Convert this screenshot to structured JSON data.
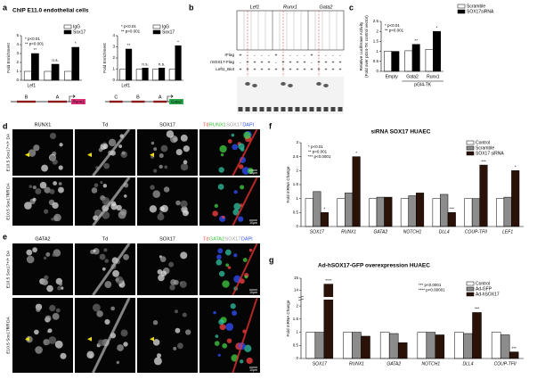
{
  "panel_labels": [
    "a",
    "b",
    "c",
    "d",
    "e",
    "f",
    "g"
  ],
  "chart_data": [
    {
      "type": "bar",
      "title": "ChIP E11.0 endothelial cells",
      "ylabel": [
        "Fold Enrichment"
      ],
      "categories": [
        "Lef1",
        null,
        null
      ],
      "series": [
        {
          "name": "IgG",
          "color": "#ffffff",
          "values": [
            1,
            1,
            1
          ]
        },
        {
          "name": "Sox17",
          "color": "#000000",
          "values": [
            3,
            1.8,
            3.7
          ],
          "significance": [
            "**",
            "n.s.",
            "*"
          ]
        }
      ],
      "ylim": [
        0,
        5
      ],
      "yticks": [
        0,
        1,
        2,
        3,
        4,
        5
      ],
      "annotations": [
        "* p<0.01",
        "** p<0.001"
      ]
    },
    {
      "type": "bar",
      "ylabel": [
        "Fold Enrichment"
      ],
      "categories": [
        "Lef1",
        null,
        null,
        null
      ],
      "series": [
        {
          "name": "IgG",
          "color": "#ffffff",
          "values": [
            1,
            1,
            1,
            1
          ]
        },
        {
          "name": "Sox17",
          "color": "#000000",
          "values": [
            2.8,
            1.1,
            1.1,
            3.1
          ],
          "significance": [
            "**",
            "n.s.",
            "n.s.",
            "*"
          ]
        }
      ],
      "ylim": [
        0,
        4
      ],
      "yticks": [
        0,
        1,
        2,
        3,
        4
      ],
      "annotations": [
        "* p<0.01",
        "** p<0.001"
      ]
    },
    {
      "type": "bar",
      "ylabel": [
        "Relative Luciferase Activity",
        "(Fold over pGI4-TK control vector)"
      ],
      "xlabel": "pGI4-TK",
      "categories": [
        "Empty",
        "Gata2",
        "Runx1"
      ],
      "series": [
        {
          "name": "Scramble",
          "color": "#ffffff",
          "values": [
            1,
            1.03,
            1.1
          ]
        },
        {
          "name": "SOX17siRNA",
          "color": "#000000",
          "values": [
            1,
            1.35,
            2.0
          ],
          "significance": [
            null,
            "**",
            "*"
          ]
        }
      ],
      "ylim": [
        0,
        2.5
      ],
      "yticks": [
        0,
        0.5,
        1,
        1.5,
        2,
        2.5
      ],
      "annotations": [
        "* p<0.01",
        "** p<0.001"
      ]
    },
    {
      "type": "bar",
      "title": "siRNA SOX17 HUAEC",
      "ylabel": [
        "Fold mRNA Change"
      ],
      "categories": [
        "SOX17",
        "RUNX1",
        "GATA2",
        "NOTCH1",
        "DLL4",
        "COUP-TFII",
        "LEF1"
      ],
      "series": [
        {
          "name": "Control",
          "color": "#ffffff",
          "values": [
            1,
            1,
            1,
            1,
            1,
            1,
            1
          ]
        },
        {
          "name": "Scramble",
          "color": "#8c8c8c",
          "values": [
            1.25,
            1.2,
            1.05,
            1.1,
            1.15,
            1.0,
            1.05
          ]
        },
        {
          "name": "SOX17 siRNA",
          "color": "#2a1208",
          "values": [
            0.5,
            2.5,
            1.05,
            1.2,
            0.5,
            2.2,
            2.0
          ],
          "significance": [
            "*",
            "*",
            null,
            null,
            "***",
            "***",
            "*"
          ]
        }
      ],
      "ylim": [
        0,
        3
      ],
      "yticks": [
        0,
        0.5,
        1,
        1.5,
        2,
        2.5,
        3
      ],
      "annotations": [
        "* p<0.01",
        "** p<0.001",
        "*** p<0.0001"
      ]
    },
    {
      "type": "bar",
      "title": "Ad-hSOX17-GFP overexpression HUAEC",
      "ylabel": [
        "Fold mRNA Change"
      ],
      "categories": [
        "SOX17",
        "RUNX1",
        "GATA2",
        "NOTCH1",
        "DLL4",
        "COUP-TFII"
      ],
      "series": [
        {
          "name": "Control",
          "color": "#ffffff",
          "values": [
            1,
            1,
            1,
            1,
            1,
            1
          ]
        },
        {
          "name": "Ad-GFP",
          "color": "#8c8c8c",
          "values": [
            1.0,
            1.0,
            0.95,
            1.0,
            0.95,
            0.9
          ]
        },
        {
          "name": "Ad-hSOX17",
          "color": "#2a1208",
          "values": [
            14.5,
            0.85,
            0.6,
            0.9,
            1.75,
            0.25
          ],
          "significance": [
            "****",
            null,
            null,
            null,
            "***",
            "***"
          ]
        }
      ],
      "ylim": [
        0,
        15
      ],
      "ybreak": [
        2.2,
        13.5
      ],
      "yticks": [
        0,
        0.5,
        1,
        1.5,
        2,
        14,
        15
      ],
      "annotations": [
        "*** p<0.0001",
        "**** p<0.00001"
      ]
    }
  ],
  "chip_diagrams": [
    {
      "regions": [
        "B",
        "A"
      ],
      "gene": "Runx1",
      "color": "#e0307a"
    },
    {
      "regions": [
        "C",
        "B",
        "A"
      ],
      "gene": "Gata2",
      "color": "#2aa84a"
    }
  ],
  "emsa": {
    "genes": [
      "Lef1",
      "Runx1",
      "Gata2"
    ],
    "rows": [
      {
        "label": "rFlag",
        "cells": [
          "+",
          "-",
          "-",
          "-",
          "-",
          "+",
          "-",
          "-",
          "-",
          "-",
          "+",
          "-",
          "-",
          "-",
          "-"
        ]
      },
      {
        "label": "rSOX17-Flag",
        "cells": [
          "-",
          "+",
          "+",
          "+",
          "+",
          "-",
          "+",
          "+",
          "+",
          "+",
          "-",
          "+",
          "+",
          "+",
          "+"
        ]
      },
      {
        "label": "Left1_Biot",
        "cells": [
          "+",
          "+",
          "+",
          "+",
          "+",
          "+",
          "+",
          "+",
          "+",
          "+",
          "+",
          "+",
          "+",
          "+",
          "+"
        ]
      }
    ]
  },
  "microscopy": [
    {
      "columns": [
        "RUNX1",
        "Td",
        "SOX17"
      ],
      "merge": [
        {
          "text": "Td",
          "color": "#ff4040"
        },
        {
          "text": "RUNX1",
          "color": "#30c030"
        },
        {
          "text": "SOX17",
          "color": "#9a9a9a"
        },
        {
          "text": "DAPI",
          "color": "#3050ff"
        }
      ],
      "rows": [
        "E10.5 Sox17+/+ DA",
        "E10.5 Sox17fl/fl DA"
      ],
      "scale_bar": "10µm"
    },
    {
      "columns": [
        "GATA2",
        "Td",
        "SOX17"
      ],
      "merge": [
        {
          "text": "Td",
          "color": "#ff4040"
        },
        {
          "text": "GATA2",
          "color": "#30c030"
        },
        {
          "text": "SOX17",
          "color": "#9a9a9a"
        },
        {
          "text": "DAPI",
          "color": "#3050ff"
        }
      ],
      "rows": [
        "E10.5 Sox17+/+ DA",
        "E10.5 Sox17fl/fl DA"
      ],
      "scale_bar": "10µm"
    }
  ]
}
